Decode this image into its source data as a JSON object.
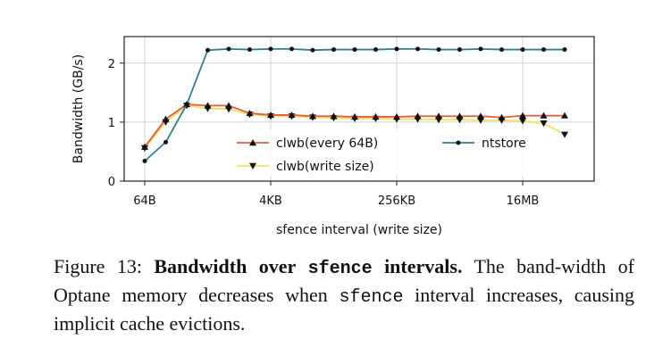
{
  "chart_data": {
    "type": "line",
    "xlabel": "sfence interval (write size)",
    "ylabel": "Bandwidth (GB/s)",
    "x_tick_labels": [
      "64B",
      "4KB",
      "256KB",
      "16MB"
    ],
    "x_tick_index": [
      0,
      6,
      12,
      18
    ],
    "y_ticks": [
      0,
      1,
      2
    ],
    "ylim": [
      0,
      2.45
    ],
    "grid": true,
    "legend_position": "lower-center",
    "x": [
      "64B",
      "128B",
      "256B",
      "512B",
      "1KB",
      "2KB",
      "4KB",
      "8KB",
      "16KB",
      "32KB",
      "64KB",
      "128KB",
      "256KB",
      "512KB",
      "1MB",
      "2MB",
      "4MB",
      "8MB",
      "16MB",
      "32MB",
      "64MB"
    ],
    "series": [
      {
        "name": "clwb(every 64B)",
        "color": "#e8593c",
        "marker": "triangle-up",
        "values": [
          0.58,
          1.05,
          1.3,
          1.28,
          1.28,
          1.15,
          1.12,
          1.12,
          1.1,
          1.1,
          1.09,
          1.09,
          1.09,
          1.1,
          1.1,
          1.1,
          1.1,
          1.08,
          1.11,
          1.11,
          1.11
        ]
      },
      {
        "name": "clwb(write size)",
        "color": "#f1e15b",
        "marker": "triangle-down",
        "values": [
          0.56,
          1.0,
          1.28,
          1.23,
          1.22,
          1.13,
          1.1,
          1.1,
          1.08,
          1.07,
          1.06,
          1.06,
          1.05,
          1.05,
          1.04,
          1.04,
          1.03,
          1.03,
          1.02,
          0.98,
          0.79
        ]
      },
      {
        "name": "ntstore",
        "color": "#2e7f8f",
        "marker": "circle",
        "values": [
          0.34,
          0.66,
          1.3,
          2.22,
          2.24,
          2.23,
          2.24,
          2.24,
          2.22,
          2.23,
          2.23,
          2.23,
          2.24,
          2.24,
          2.23,
          2.23,
          2.24,
          2.23,
          2.23,
          2.23,
          2.23
        ]
      }
    ]
  },
  "caption": {
    "figure_label": "Figure 13:",
    "bold_lead": "Bandwidth over",
    "bold_code": "sfence",
    "bold_tail": "intervals.",
    "text_1": "The band-width of Optane memory decreases when",
    "code_inline": "sfence",
    "text_2": "interval increases, causing implicit cache evictions."
  }
}
